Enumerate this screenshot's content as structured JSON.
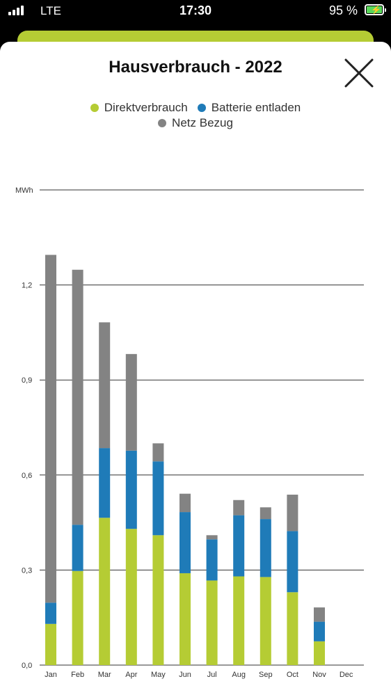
{
  "status_bar": {
    "carrier": "LTE",
    "time": "17:30",
    "battery_percent": "95 %"
  },
  "header": {
    "title": "Hausverbrauch - 2022",
    "close_icon": "close-icon"
  },
  "colors": {
    "direkt": "#b5cc34",
    "batterie": "#1f7bb8",
    "netz": "#838383",
    "grid": "#333333"
  },
  "chart_data": {
    "type": "bar",
    "stacked": true,
    "unit_label": "MWh",
    "categories": [
      "Jan",
      "Feb",
      "Mar",
      "Apr",
      "May",
      "Jun",
      "Jul",
      "Aug",
      "Sep",
      "Oct",
      "Nov",
      "Dec"
    ],
    "series": [
      {
        "name": "Direktverbrauch",
        "color": "#b5cc34",
        "values": [
          0.13,
          0.297,
          0.465,
          0.43,
          0.41,
          0.29,
          0.267,
          0.28,
          0.278,
          0.23,
          0.075,
          0
        ]
      },
      {
        "name": "Batterie entladen",
        "color": "#1f7bb8",
        "values": [
          0.067,
          0.146,
          0.22,
          0.247,
          0.233,
          0.193,
          0.13,
          0.193,
          0.183,
          0.193,
          0.062,
          0
        ]
      },
      {
        "name": "Netz Bezug",
        "color": "#838383",
        "values": [
          1.098,
          0.805,
          0.397,
          0.305,
          0.057,
          0.058,
          0.013,
          0.048,
          0.037,
          0.115,
          0.045,
          0
        ]
      }
    ],
    "yticks": [
      0.0,
      0.3,
      0.6,
      0.9,
      1.2
    ],
    "ytick_labels": [
      "0,0",
      "0,3",
      "0,6",
      "0,9",
      "1,2"
    ],
    "ylim": [
      0,
      1.5
    ],
    "legend_position": "top",
    "grid": true
  }
}
